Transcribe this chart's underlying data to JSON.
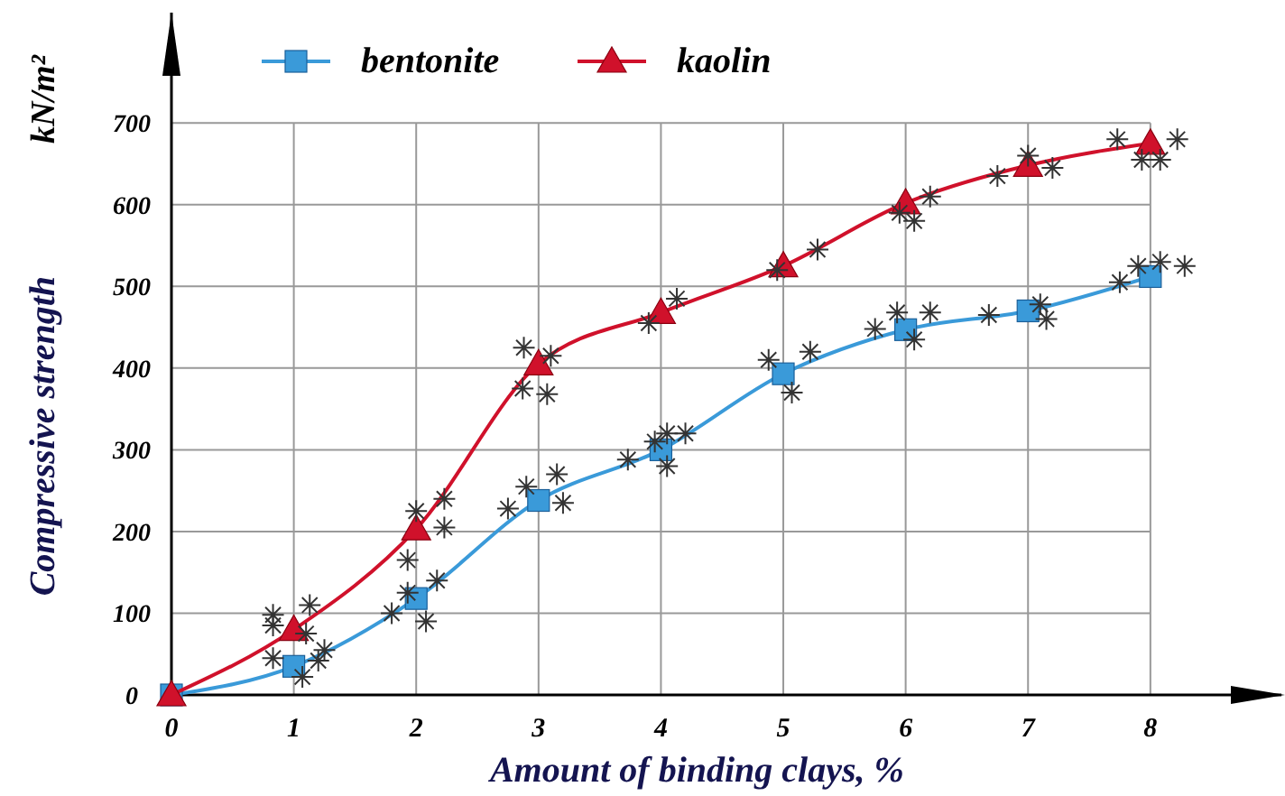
{
  "chart_data": {
    "type": "line",
    "xlabel": "Amount of binding clays, %",
    "ylabel": "Compressive strength",
    "annotations": [
      "kN/m²"
    ],
    "x": [
      0,
      1,
      2,
      3,
      4,
      5,
      6,
      7,
      8
    ],
    "xlim": [
      0,
      9.1
    ],
    "ylim": [
      0,
      835
    ],
    "xticks": [
      0,
      1,
      2,
      3,
      4,
      5,
      6,
      7,
      8
    ],
    "yticks": [
      0,
      100,
      200,
      300,
      400,
      500,
      600,
      700
    ],
    "grid": true,
    "legend": "top",
    "line_style": "solid",
    "series": [
      {
        "name": "bentonite",
        "color": "#3a9ad9",
        "marker": "square",
        "values": [
          0,
          35,
          118,
          238,
          300,
          393,
          447,
          470,
          512
        ]
      },
      {
        "name": "kaolin",
        "color": "#d0112b",
        "marker": "triangle",
        "values": [
          0,
          80,
          203,
          405,
          468,
          525,
          602,
          648,
          675
        ]
      },
      {
        "type": "scatter",
        "color": "#333333",
        "marker": "cross",
        "x": [
          0.83,
          0.83,
          0.83,
          1.13,
          1.1,
          1.25,
          1.2,
          1.07,
          1.8,
          1.93,
          1.93,
          2.0,
          2.08,
          2.17,
          2.23,
          2.23,
          2.75,
          2.9,
          3.15,
          3.2,
          2.88,
          2.87,
          3.07,
          3.1,
          3.73,
          3.95,
          4.05,
          4.2,
          4.05,
          3.9,
          4.13,
          4.88,
          5.07,
          5.22,
          4.95,
          5.28,
          5.75,
          5.93,
          6.2,
          6.07,
          6.07,
          6.2,
          5.95,
          6.68,
          7.1,
          7.15,
          6.75,
          7.0,
          7.2,
          7.75,
          7.9,
          8.08,
          8.28,
          7.73,
          7.93,
          8.08,
          8.22
        ],
        "values": [
          98,
          85,
          45,
          110,
          75,
          55,
          42,
          22,
          100,
          165,
          125,
          225,
          90,
          140,
          240,
          205,
          228,
          255,
          270,
          235,
          425,
          375,
          368,
          415,
          288,
          310,
          320,
          320,
          280,
          455,
          485,
          410,
          370,
          420,
          520,
          545,
          448,
          468,
          468,
          435,
          580,
          610,
          590,
          465,
          478,
          460,
          635,
          660,
          645,
          505,
          525,
          530,
          525,
          680,
          655,
          655,
          680
        ]
      }
    ]
  }
}
